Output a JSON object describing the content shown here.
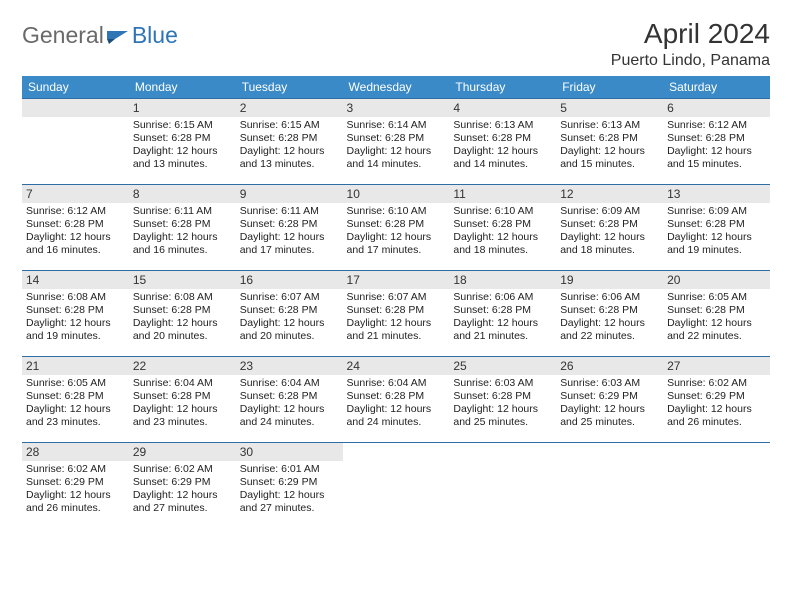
{
  "logo": {
    "general": "General",
    "blue": "Blue"
  },
  "header": {
    "month_year": "April 2024",
    "location": "Puerto Lindo, Panama"
  },
  "colors": {
    "header_bg": "#3a8ac7",
    "header_text": "#ffffff",
    "daynum_bg": "#e8e8e8",
    "border": "#2e6da4",
    "logo_gray": "#6a6a6a",
    "logo_blue": "#2e75b6"
  },
  "day_headers": [
    "Sunday",
    "Monday",
    "Tuesday",
    "Wednesday",
    "Thursday",
    "Friday",
    "Saturday"
  ],
  "layout": {
    "first_weekday_index": 1,
    "days_in_month": 30
  },
  "days": [
    {
      "n": "1",
      "sunrise": "Sunrise: 6:15 AM",
      "sunset": "Sunset: 6:28 PM",
      "daylight1": "Daylight: 12 hours",
      "daylight2": "and 13 minutes."
    },
    {
      "n": "2",
      "sunrise": "Sunrise: 6:15 AM",
      "sunset": "Sunset: 6:28 PM",
      "daylight1": "Daylight: 12 hours",
      "daylight2": "and 13 minutes."
    },
    {
      "n": "3",
      "sunrise": "Sunrise: 6:14 AM",
      "sunset": "Sunset: 6:28 PM",
      "daylight1": "Daylight: 12 hours",
      "daylight2": "and 14 minutes."
    },
    {
      "n": "4",
      "sunrise": "Sunrise: 6:13 AM",
      "sunset": "Sunset: 6:28 PM",
      "daylight1": "Daylight: 12 hours",
      "daylight2": "and 14 minutes."
    },
    {
      "n": "5",
      "sunrise": "Sunrise: 6:13 AM",
      "sunset": "Sunset: 6:28 PM",
      "daylight1": "Daylight: 12 hours",
      "daylight2": "and 15 minutes."
    },
    {
      "n": "6",
      "sunrise": "Sunrise: 6:12 AM",
      "sunset": "Sunset: 6:28 PM",
      "daylight1": "Daylight: 12 hours",
      "daylight2": "and 15 minutes."
    },
    {
      "n": "7",
      "sunrise": "Sunrise: 6:12 AM",
      "sunset": "Sunset: 6:28 PM",
      "daylight1": "Daylight: 12 hours",
      "daylight2": "and 16 minutes."
    },
    {
      "n": "8",
      "sunrise": "Sunrise: 6:11 AM",
      "sunset": "Sunset: 6:28 PM",
      "daylight1": "Daylight: 12 hours",
      "daylight2": "and 16 minutes."
    },
    {
      "n": "9",
      "sunrise": "Sunrise: 6:11 AM",
      "sunset": "Sunset: 6:28 PM",
      "daylight1": "Daylight: 12 hours",
      "daylight2": "and 17 minutes."
    },
    {
      "n": "10",
      "sunrise": "Sunrise: 6:10 AM",
      "sunset": "Sunset: 6:28 PM",
      "daylight1": "Daylight: 12 hours",
      "daylight2": "and 17 minutes."
    },
    {
      "n": "11",
      "sunrise": "Sunrise: 6:10 AM",
      "sunset": "Sunset: 6:28 PM",
      "daylight1": "Daylight: 12 hours",
      "daylight2": "and 18 minutes."
    },
    {
      "n": "12",
      "sunrise": "Sunrise: 6:09 AM",
      "sunset": "Sunset: 6:28 PM",
      "daylight1": "Daylight: 12 hours",
      "daylight2": "and 18 minutes."
    },
    {
      "n": "13",
      "sunrise": "Sunrise: 6:09 AM",
      "sunset": "Sunset: 6:28 PM",
      "daylight1": "Daylight: 12 hours",
      "daylight2": "and 19 minutes."
    },
    {
      "n": "14",
      "sunrise": "Sunrise: 6:08 AM",
      "sunset": "Sunset: 6:28 PM",
      "daylight1": "Daylight: 12 hours",
      "daylight2": "and 19 minutes."
    },
    {
      "n": "15",
      "sunrise": "Sunrise: 6:08 AM",
      "sunset": "Sunset: 6:28 PM",
      "daylight1": "Daylight: 12 hours",
      "daylight2": "and 20 minutes."
    },
    {
      "n": "16",
      "sunrise": "Sunrise: 6:07 AM",
      "sunset": "Sunset: 6:28 PM",
      "daylight1": "Daylight: 12 hours",
      "daylight2": "and 20 minutes."
    },
    {
      "n": "17",
      "sunrise": "Sunrise: 6:07 AM",
      "sunset": "Sunset: 6:28 PM",
      "daylight1": "Daylight: 12 hours",
      "daylight2": "and 21 minutes."
    },
    {
      "n": "18",
      "sunrise": "Sunrise: 6:06 AM",
      "sunset": "Sunset: 6:28 PM",
      "daylight1": "Daylight: 12 hours",
      "daylight2": "and 21 minutes."
    },
    {
      "n": "19",
      "sunrise": "Sunrise: 6:06 AM",
      "sunset": "Sunset: 6:28 PM",
      "daylight1": "Daylight: 12 hours",
      "daylight2": "and 22 minutes."
    },
    {
      "n": "20",
      "sunrise": "Sunrise: 6:05 AM",
      "sunset": "Sunset: 6:28 PM",
      "daylight1": "Daylight: 12 hours",
      "daylight2": "and 22 minutes."
    },
    {
      "n": "21",
      "sunrise": "Sunrise: 6:05 AM",
      "sunset": "Sunset: 6:28 PM",
      "daylight1": "Daylight: 12 hours",
      "daylight2": "and 23 minutes."
    },
    {
      "n": "22",
      "sunrise": "Sunrise: 6:04 AM",
      "sunset": "Sunset: 6:28 PM",
      "daylight1": "Daylight: 12 hours",
      "daylight2": "and 23 minutes."
    },
    {
      "n": "23",
      "sunrise": "Sunrise: 6:04 AM",
      "sunset": "Sunset: 6:28 PM",
      "daylight1": "Daylight: 12 hours",
      "daylight2": "and 24 minutes."
    },
    {
      "n": "24",
      "sunrise": "Sunrise: 6:04 AM",
      "sunset": "Sunset: 6:28 PM",
      "daylight1": "Daylight: 12 hours",
      "daylight2": "and 24 minutes."
    },
    {
      "n": "25",
      "sunrise": "Sunrise: 6:03 AM",
      "sunset": "Sunset: 6:28 PM",
      "daylight1": "Daylight: 12 hours",
      "daylight2": "and 25 minutes."
    },
    {
      "n": "26",
      "sunrise": "Sunrise: 6:03 AM",
      "sunset": "Sunset: 6:29 PM",
      "daylight1": "Daylight: 12 hours",
      "daylight2": "and 25 minutes."
    },
    {
      "n": "27",
      "sunrise": "Sunrise: 6:02 AM",
      "sunset": "Sunset: 6:29 PM",
      "daylight1": "Daylight: 12 hours",
      "daylight2": "and 26 minutes."
    },
    {
      "n": "28",
      "sunrise": "Sunrise: 6:02 AM",
      "sunset": "Sunset: 6:29 PM",
      "daylight1": "Daylight: 12 hours",
      "daylight2": "and 26 minutes."
    },
    {
      "n": "29",
      "sunrise": "Sunrise: 6:02 AM",
      "sunset": "Sunset: 6:29 PM",
      "daylight1": "Daylight: 12 hours",
      "daylight2": "and 27 minutes."
    },
    {
      "n": "30",
      "sunrise": "Sunrise: 6:01 AM",
      "sunset": "Sunset: 6:29 PM",
      "daylight1": "Daylight: 12 hours",
      "daylight2": "and 27 minutes."
    }
  ]
}
